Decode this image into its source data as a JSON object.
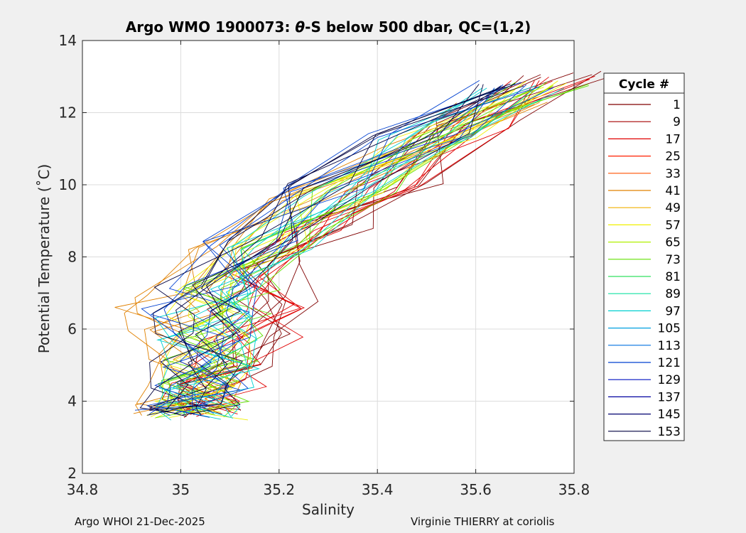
{
  "chart_data": {
    "type": "line",
    "title_prefix": "Argo WMO 1900073: ",
    "title_symbol": "θ",
    "title_suffix": "-S below 500 dbar,  QC=(1,2)",
    "xlabel": "Salinity",
    "ylabel": "Potential Temperature (˚C)",
    "xlim": [
      34.8,
      35.8
    ],
    "ylim": [
      2,
      14
    ],
    "xticks": [
      "34.8",
      "35",
      "35.2",
      "35.4",
      "35.6",
      "35.8"
    ],
    "yticks": [
      "2",
      "4",
      "6",
      "8",
      "10",
      "12",
      "14"
    ],
    "grid": true,
    "legend": {
      "title": "Cycle #",
      "placement": "right",
      "entries": [
        {
          "label": "1",
          "color": "#800000"
        },
        {
          "label": "9",
          "color": "#a60000"
        },
        {
          "label": "17",
          "color": "#e00000"
        },
        {
          "label": "25",
          "color": "#ff2000"
        },
        {
          "label": "33",
          "color": "#ff5000"
        },
        {
          "label": "41",
          "color": "#e08000"
        },
        {
          "label": "49",
          "color": "#f0b000"
        },
        {
          "label": "57",
          "color": "#f0f000"
        },
        {
          "label": "65",
          "color": "#b0f000"
        },
        {
          "label": "73",
          "color": "#60e000"
        },
        {
          "label": "81",
          "color": "#30e060"
        },
        {
          "label": "89",
          "color": "#10e0a0"
        },
        {
          "label": "97",
          "color": "#00d0d0"
        },
        {
          "label": "105",
          "color": "#00a0e0"
        },
        {
          "label": "113",
          "color": "#0070e0"
        },
        {
          "label": "121",
          "color": "#0040d0"
        },
        {
          "label": "129",
          "color": "#0010c0"
        },
        {
          "label": "137",
          "color": "#0000a0"
        },
        {
          "label": "145",
          "color": "#000070"
        },
        {
          "label": "153",
          "color": "#000040"
        }
      ]
    },
    "representative_profiles": [
      {
        "cycle": "1",
        "s": [
          35.78,
          35.6,
          35.45,
          35.33,
          35.2,
          35.18,
          35.19,
          35.15,
          35.1,
          35.06,
          35.03
        ],
        "t": [
          13.05,
          11.7,
          10.0,
          8.9,
          7.8,
          6.8,
          5.8,
          5.0,
          4.5,
          4.0,
          3.7
        ]
      },
      {
        "cycle": "17",
        "s": [
          35.76,
          35.58,
          35.42,
          35.28,
          35.17,
          35.16,
          35.15,
          35.11,
          35.08,
          35.05,
          35.02
        ],
        "t": [
          12.95,
          11.6,
          9.9,
          8.7,
          7.5,
          6.6,
          5.7,
          5.0,
          4.5,
          4.0,
          3.65
        ]
      },
      {
        "cycle": "41",
        "s": [
          35.66,
          35.45,
          35.28,
          35.12,
          35.02,
          34.98,
          34.99,
          35.02,
          35.03,
          35.02,
          35.01
        ],
        "t": [
          12.3,
          11.0,
          9.6,
          8.3,
          7.0,
          6.5,
          6.0,
          5.2,
          4.5,
          4.0,
          3.7
        ]
      },
      {
        "cycle": "57",
        "s": [
          35.72,
          35.5,
          35.32,
          35.16,
          35.07,
          35.05,
          35.06,
          35.06,
          35.05,
          35.03,
          35.02
        ],
        "t": [
          12.8,
          11.3,
          9.7,
          8.2,
          7.0,
          6.4,
          5.8,
          5.0,
          4.4,
          3.9,
          3.6
        ]
      },
      {
        "cycle": "73",
        "s": [
          35.73,
          35.52,
          35.35,
          35.18,
          35.1,
          35.08,
          35.08,
          35.07,
          35.06,
          35.04,
          35.03
        ],
        "t": [
          12.75,
          11.3,
          9.8,
          8.2,
          7.1,
          6.5,
          5.8,
          5.1,
          4.5,
          4.0,
          3.6
        ]
      },
      {
        "cycle": "97",
        "s": [
          35.72,
          35.51,
          35.33,
          35.17,
          35.07,
          35.05,
          35.06,
          35.06,
          35.05,
          35.03,
          35.02
        ],
        "t": [
          12.7,
          11.3,
          9.8,
          8.3,
          7.1,
          6.4,
          5.7,
          5.0,
          4.4,
          3.9,
          3.6
        ]
      },
      {
        "cycle": "121",
        "s": [
          35.71,
          35.49,
          35.31,
          35.14,
          35.05,
          35.03,
          35.04,
          35.05,
          35.04,
          35.02,
          35.01
        ],
        "t": [
          12.8,
          11.4,
          9.9,
          8.4,
          7.2,
          6.5,
          5.8,
          5.0,
          4.4,
          3.9,
          3.65
        ]
      },
      {
        "cycle": "153",
        "s": [
          35.7,
          35.48,
          35.3,
          35.13,
          35.03,
          35.02,
          35.03,
          35.04,
          35.03,
          35.02,
          35.01
        ],
        "t": [
          12.8,
          11.4,
          10.0,
          8.5,
          7.2,
          6.5,
          5.9,
          5.1,
          4.4,
          3.9,
          3.65
        ]
      }
    ]
  },
  "footer": {
    "left": "Argo WHOI 21-Dec-2025",
    "right": "Virginie THIERRY at coriolis"
  }
}
